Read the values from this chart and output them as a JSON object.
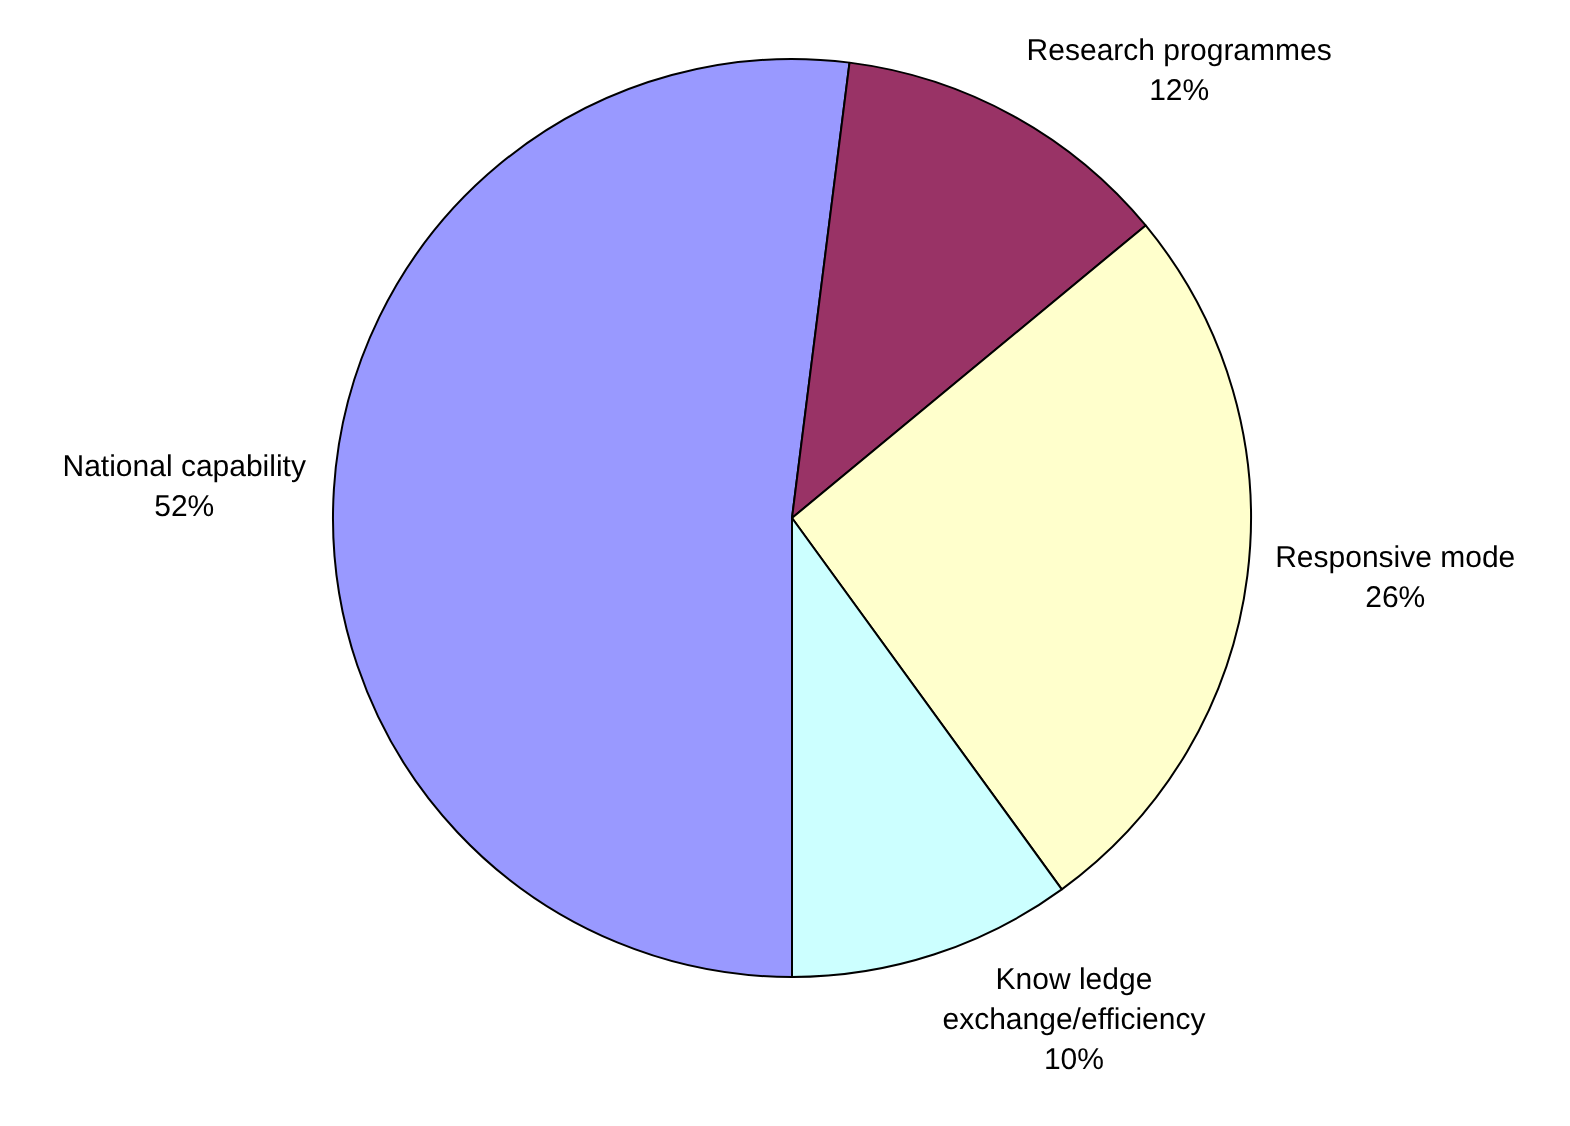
{
  "chart_data": {
    "type": "pie",
    "categories": [
      "National capability",
      "Research programmes",
      "Responsive mode",
      "Know ledge exchange/efficiency"
    ],
    "values": [
      52,
      12,
      26,
      10
    ],
    "colors": [
      "#9999ff",
      "#993366",
      "#ffffcc",
      "#ccffff"
    ],
    "value_labels": [
      "52%",
      "12%",
      "26%",
      "10%"
    ],
    "legend": false
  }
}
